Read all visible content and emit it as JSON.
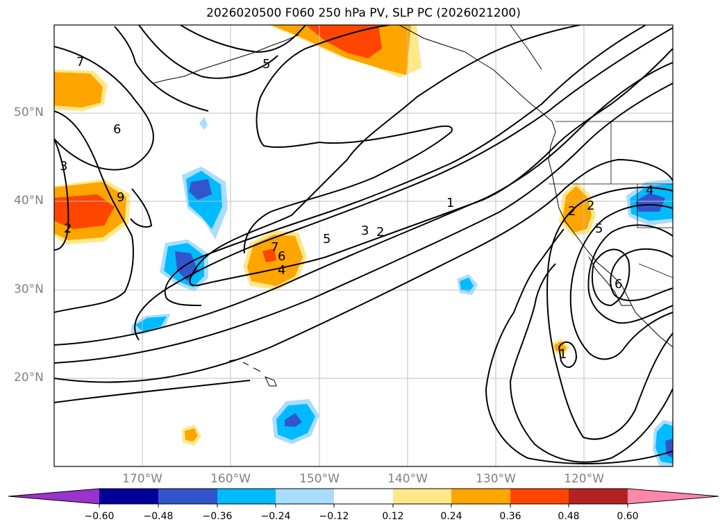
{
  "title": "2026020500 F060 250 hPa PV, SLP PC (2026021200)",
  "map": {
    "projection": "plate-carree",
    "lon_range": [
      -180,
      -110
    ],
    "lat_range": [
      10,
      60
    ],
    "gridlines": true,
    "lat_labels": [
      "50°N",
      "40°N",
      "30°N",
      "20°N"
    ],
    "lon_labels": [
      "170°W",
      "160°W",
      "150°W",
      "140°W",
      "130°W",
      "120°W"
    ],
    "contour_labels": [
      "7",
      "5",
      "6",
      "3",
      "2",
      "9",
      "7",
      "6",
      "4",
      "5",
      "3",
      "2",
      "1",
      "2",
      "2",
      "5",
      "6",
      "1",
      "4"
    ]
  },
  "colorbar": {
    "tick_labels": [
      "−0.60",
      "−0.48",
      "−0.36",
      "−0.24",
      "−0.12",
      "0.12",
      "0.24",
      "0.36",
      "0.48",
      "0.60"
    ],
    "colors": [
      "#9933cc",
      "#000099",
      "#3355cc",
      "#00bbff",
      "#aaddff",
      "#ffffff",
      "#ffe88a",
      "#ffa500",
      "#ff4500",
      "#b22222",
      "#ff88aa"
    ],
    "extend": "both"
  }
}
